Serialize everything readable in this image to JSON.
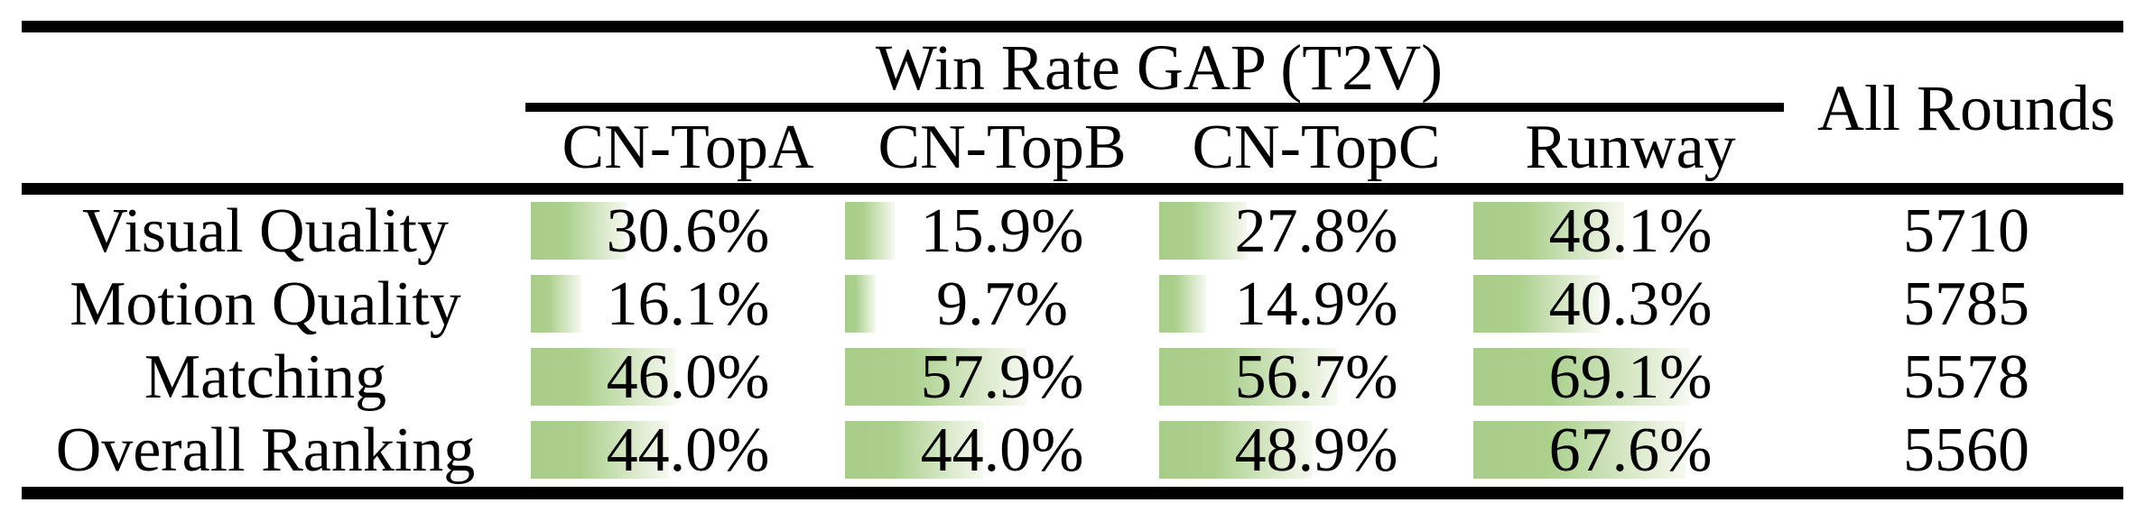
{
  "page": {
    "background": "#ffffff",
    "rule_color": "#000000",
    "text_color": "#000000"
  },
  "table": {
    "group_header": "Win Rate GAP (T2V)",
    "columns": [
      "CN-TopA",
      "CN-TopB",
      "CN-TopC",
      "Runway"
    ],
    "all_rounds_header": "All Rounds",
    "bar_colors": {
      "start": "#a7cd89",
      "end": "#f6f9f1"
    },
    "rows": [
      {
        "label": "Visual Quality",
        "values": [
          "30.6%",
          "15.9%",
          "27.8%",
          "48.1%"
        ],
        "pcts": [
          30.6,
          15.9,
          27.8,
          48.1
        ],
        "all_rounds": "5710"
      },
      {
        "label": "Motion Quality",
        "values": [
          "16.1%",
          "9.7%",
          "14.9%",
          "40.3%"
        ],
        "pcts": [
          16.1,
          9.7,
          14.9,
          40.3
        ],
        "all_rounds": "5785"
      },
      {
        "label": "Matching",
        "values": [
          "46.0%",
          "57.9%",
          "56.7%",
          "69.1%"
        ],
        "pcts": [
          46.0,
          57.9,
          56.7,
          69.1
        ],
        "all_rounds": "5578"
      },
      {
        "label": "Overall Ranking",
        "values": [
          "44.0%",
          "44.0%",
          "48.9%",
          "67.6%"
        ],
        "pcts": [
          44.0,
          44.0,
          48.9,
          67.6
        ],
        "all_rounds": "5560"
      }
    ]
  },
  "chart_data": {
    "type": "table",
    "title": "Win Rate GAP (T2V)",
    "categories": [
      "Visual Quality",
      "Motion Quality",
      "Matching",
      "Overall Ranking"
    ],
    "series": [
      {
        "name": "CN-TopA",
        "values": [
          30.6,
          16.1,
          46.0,
          44.0
        ]
      },
      {
        "name": "CN-TopB",
        "values": [
          15.9,
          9.7,
          57.9,
          44.0
        ]
      },
      {
        "name": "CN-TopC",
        "values": [
          27.8,
          14.9,
          56.7,
          48.9
        ]
      },
      {
        "name": "Runway",
        "values": [
          48.1,
          40.3,
          69.1,
          67.6
        ]
      }
    ],
    "extra_column": {
      "name": "All Rounds",
      "values": [
        5710,
        5785,
        5578,
        5560
      ]
    },
    "unit": "%",
    "layout": "in-cell left-aligned data bars, bar length proportional to percentage of column width, green-to-white horizontal gradient"
  }
}
